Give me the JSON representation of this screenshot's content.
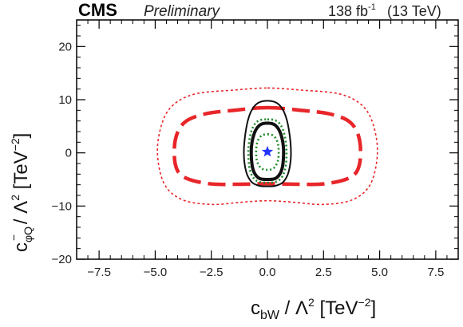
{
  "chart_data": {
    "type": "contour",
    "experiment": "CMS",
    "status": "Preliminary",
    "luminosity": "138 fb",
    "luminosity_exp": "-1",
    "energy": "(13 TeV)",
    "xlabel": "c",
    "xlabel_sub": "bW",
    "xlabel_rest": " / Λ",
    "xlabel_unit": " [TeV",
    "xlabel_unit_exp": "−2",
    "xlabel_close": "]",
    "ylabel": "c",
    "ylabel_sub": "φQ",
    "ylabel_sup": "−",
    "ylabel_rest": " / Λ",
    "ylabel_unit": " [TeV",
    "ylabel_unit_exp": "−2",
    "ylabel_close": "]",
    "xlim": [
      -8.5,
      8.5
    ],
    "ylim": [
      -20,
      25
    ],
    "xticks": [
      -7.5,
      -5.0,
      -2.5,
      0.0,
      2.5,
      5.0,
      7.5
    ],
    "xtick_labels": [
      "−7.5",
      "−5.0",
      "−2.5",
      "0.0",
      "2.5",
      "5.0",
      "7.5"
    ],
    "yticks": [
      -20,
      -10,
      0,
      10,
      20
    ],
    "ytick_labels": [
      "−20",
      "−10",
      "0",
      "10",
      "20"
    ],
    "grid": false,
    "best_fit": {
      "x": 0.0,
      "y": 0.2,
      "color": "#2233ff",
      "marker": "star"
    },
    "series": [
      {
        "style": "dotted",
        "color": "#e8262a",
        "points": [
          [
            0,
            12.2
          ],
          [
            1.5,
            11.8
          ],
          [
            3.2,
            11.1
          ],
          [
            4.2,
            9
          ],
          [
            4.7,
            5.5
          ],
          [
            4.9,
            0
          ],
          [
            4.6,
            -5.8
          ],
          [
            3.8,
            -8.8
          ],
          [
            2.5,
            -9.7
          ],
          [
            1.2,
            -9.3
          ],
          [
            0,
            -9
          ],
          [
            -1.2,
            -9.3
          ],
          [
            -2.5,
            -9.7
          ],
          [
            -3.8,
            -8.8
          ],
          [
            -4.6,
            -5.8
          ],
          [
            -4.9,
            0
          ],
          [
            -4.7,
            5.5
          ],
          [
            -4.2,
            9
          ],
          [
            -3.2,
            11.1
          ],
          [
            -1.5,
            11.8
          ]
        ]
      },
      {
        "style": "dashed",
        "color": "#e8262a",
        "points": [
          [
            0,
            8.5
          ],
          [
            1.5,
            8.0
          ],
          [
            2.8,
            7.3
          ],
          [
            3.7,
            5.7
          ],
          [
            4.1,
            2.5
          ],
          [
            4.1,
            -2.2
          ],
          [
            3.7,
            -4.6
          ],
          [
            2.6,
            -5.8
          ],
          [
            1.3,
            -5.9
          ],
          [
            0,
            -5.8
          ],
          [
            -1.3,
            -5.9
          ],
          [
            -2.6,
            -5.8
          ],
          [
            -3.7,
            -4.6
          ],
          [
            -4.1,
            -2.2
          ],
          [
            -4.1,
            2.5
          ],
          [
            -3.7,
            5.7
          ],
          [
            -2.8,
            7.3
          ],
          [
            -1.5,
            8.0
          ]
        ]
      },
      {
        "style": "solid",
        "color": "#111111",
        "points": [
          [
            0,
            9.8
          ],
          [
            0.45,
            9.3
          ],
          [
            0.75,
            7.6
          ],
          [
            0.95,
            4.5
          ],
          [
            1.05,
            0
          ],
          [
            0.95,
            -3.5
          ],
          [
            0.7,
            -5.5
          ],
          [
            0.35,
            -6.2
          ],
          [
            0,
            -6.3
          ],
          [
            -0.35,
            -6.2
          ],
          [
            -0.7,
            -5.5
          ],
          [
            -0.95,
            -3.5
          ],
          [
            -1.05,
            0
          ],
          [
            -0.95,
            4.5
          ],
          [
            -0.75,
            7.6
          ],
          [
            -0.45,
            9.3
          ]
        ]
      },
      {
        "style": "solid-thick",
        "color": "#111111",
        "points": [
          [
            0,
            5.6
          ],
          [
            0.35,
            5.2
          ],
          [
            0.6,
            3.5
          ],
          [
            0.72,
            0.5
          ],
          [
            0.65,
            -3.0
          ],
          [
            0.4,
            -4.7
          ],
          [
            0,
            -5.0
          ],
          [
            -0.4,
            -4.7
          ],
          [
            -0.65,
            -3.0
          ],
          [
            -0.72,
            0.5
          ],
          [
            -0.6,
            3.5
          ],
          [
            -0.35,
            5.2
          ]
        ]
      },
      {
        "style": "dotted",
        "color": "#1f8a2a",
        "points": [
          [
            0,
            6.3
          ],
          [
            0.45,
            5.9
          ],
          [
            0.72,
            4.0
          ],
          [
            0.85,
            0.5
          ],
          [
            0.78,
            -3.2
          ],
          [
            0.5,
            -5.2
          ],
          [
            0,
            -5.6
          ],
          [
            -0.5,
            -5.2
          ],
          [
            -0.78,
            -3.2
          ],
          [
            -0.85,
            0.5
          ],
          [
            -0.72,
            4.0
          ],
          [
            -0.45,
            5.9
          ]
        ]
      },
      {
        "style": "dotted",
        "color": "#1f8a2a",
        "points": [
          [
            0,
            3.5
          ],
          [
            0.3,
            3.1
          ],
          [
            0.48,
            1.5
          ],
          [
            0.48,
            -1.2
          ],
          [
            0.3,
            -2.8
          ],
          [
            0,
            -3.2
          ],
          [
            -0.3,
            -2.8
          ],
          [
            -0.48,
            -1.2
          ],
          [
            -0.48,
            1.5
          ],
          [
            -0.3,
            3.1
          ]
        ]
      }
    ]
  }
}
